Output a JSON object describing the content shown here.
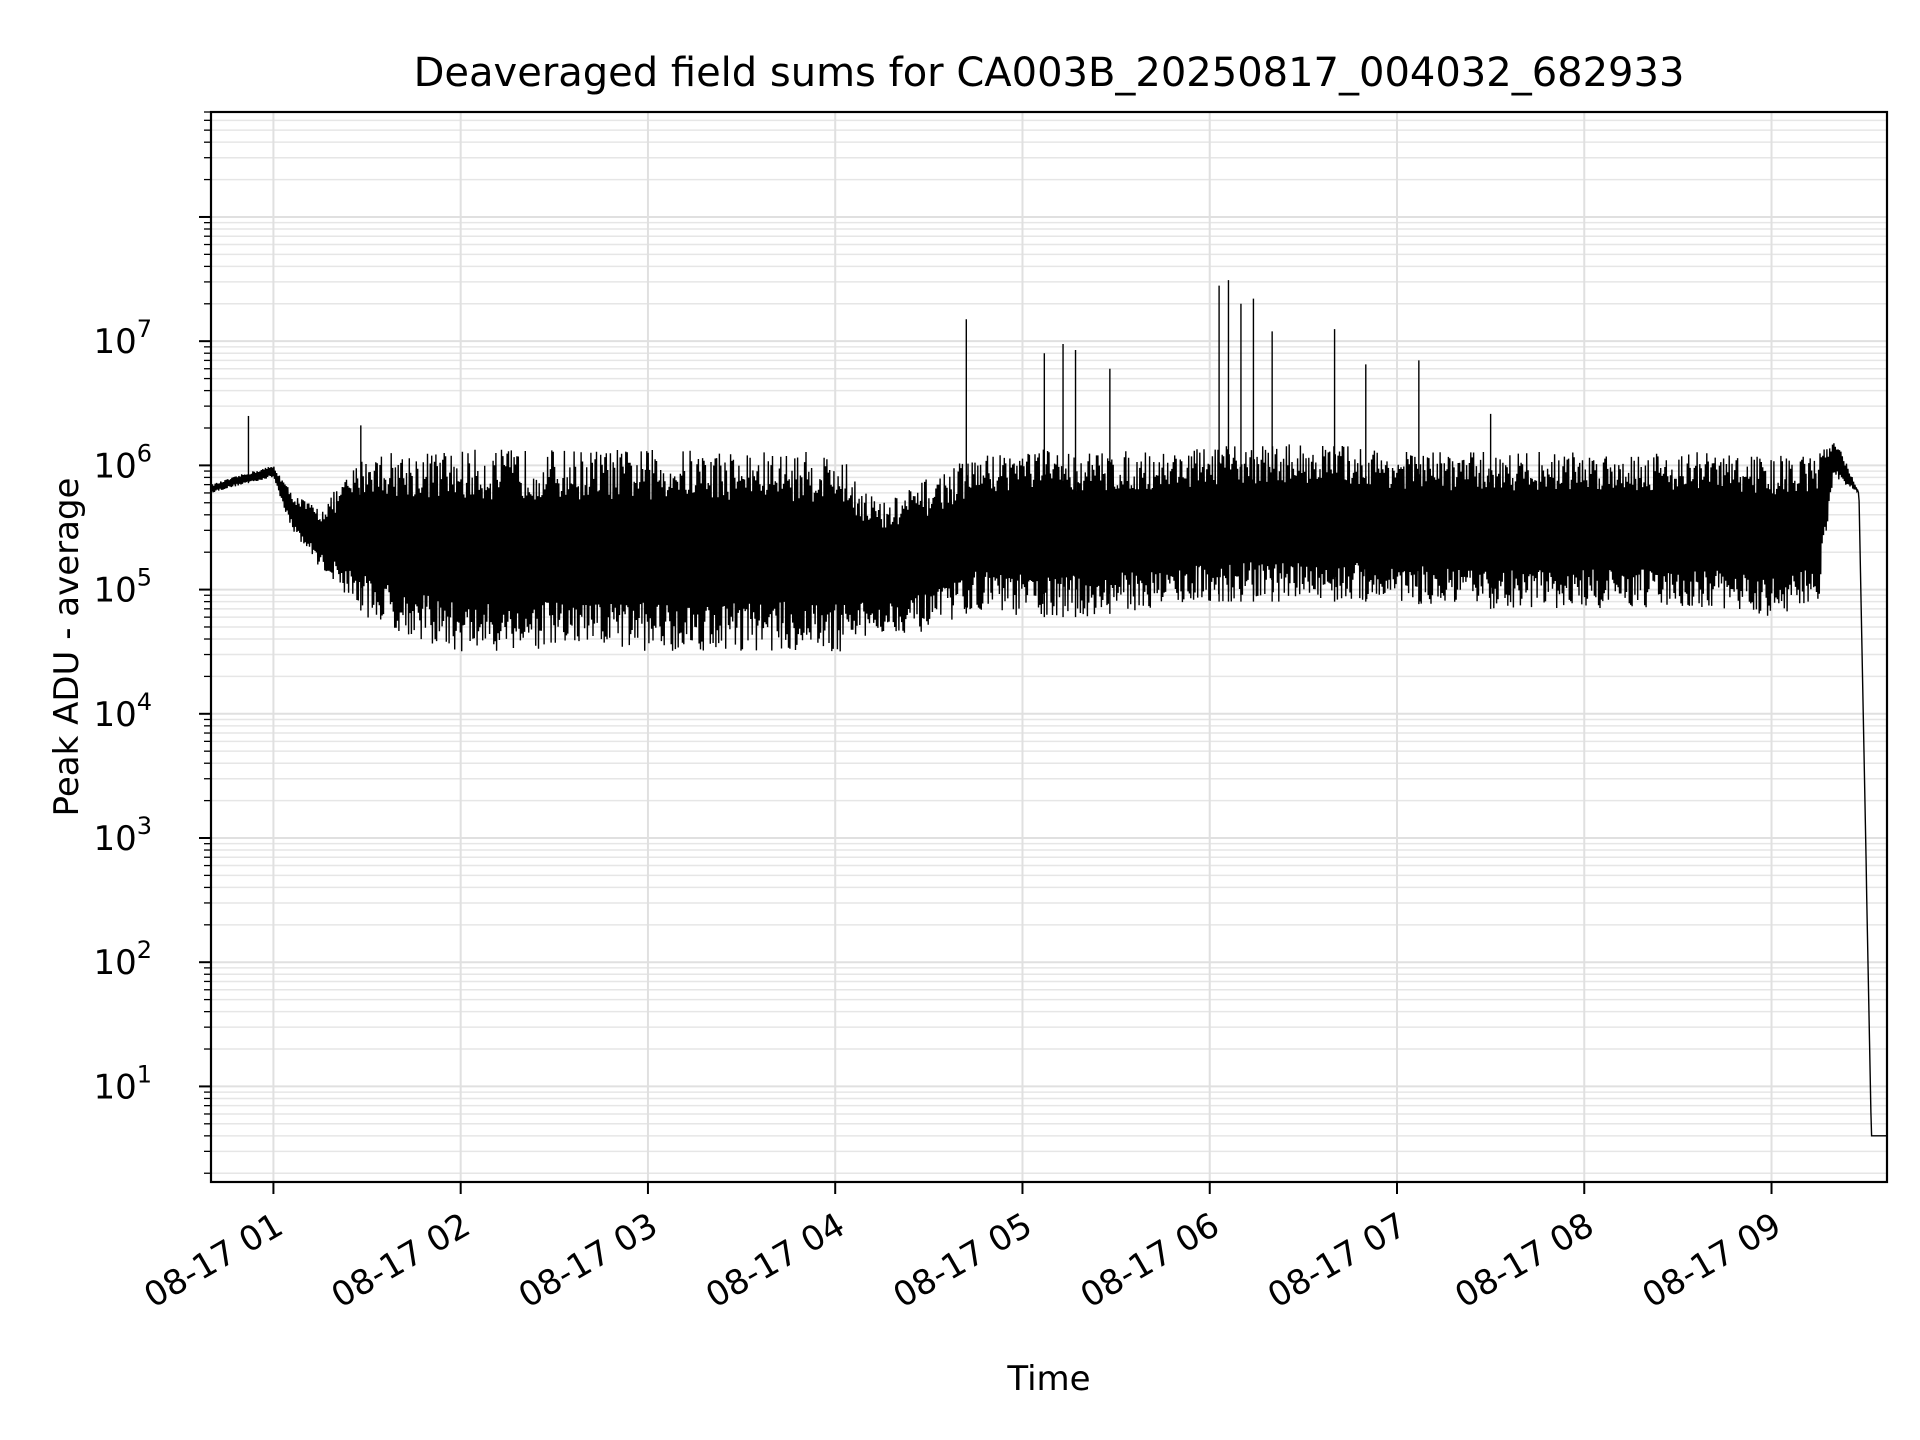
{
  "chart_data": {
    "type": "line",
    "title": "Deaveraged field sums for CA003B_20250817_004032_682933",
    "xlabel": "Time",
    "ylabel": "Peak ADU - average",
    "yscale": "log",
    "xlim": [
      "08-17 00:40",
      "08-17 09:37"
    ],
    "ylim": [
      1.7,
      700000000
    ],
    "grid": true,
    "x_tick_labels": [
      "08-17 01",
      "08-17 02",
      "08-17 03",
      "08-17 04",
      "08-17 05",
      "08-17 06",
      "08-17 07",
      "08-17 08",
      "08-17 09"
    ],
    "y_tick_labels": [
      {
        "base": "10",
        "exp": "1"
      },
      {
        "base": "10",
        "exp": "2"
      },
      {
        "base": "10",
        "exp": "3"
      },
      {
        "base": "10",
        "exp": "4"
      },
      {
        "base": "10",
        "exp": "5"
      },
      {
        "base": "10",
        "exp": "6"
      },
      {
        "base": "10",
        "exp": "7"
      }
    ],
    "series": [
      {
        "color": "#000000",
        "x": [
          "08-17 00:40",
          "08-17 00:50",
          "08-17 01:00",
          "08-17 01:06",
          "08-17 01:15",
          "08-17 01:30",
          "08-17 01:45",
          "08-17 02:00",
          "08-17 02:20",
          "08-17 02:40",
          "08-17 03:00",
          "08-17 03:20",
          "08-17 03:40",
          "08-17 04:00",
          "08-17 04:15",
          "08-17 04:30",
          "08-17 04:45",
          "08-17 05:00",
          "08-17 05:20",
          "08-17 05:40",
          "08-17 06:00",
          "08-17 06:20",
          "08-17 06:40",
          "08-17 07:00",
          "08-17 07:20",
          "08-17 07:40",
          "08-17 08:00",
          "08-17 08:20",
          "08-17 08:40",
          "08-17 09:00",
          "08-17 09:15",
          "08-17 09:20",
          "08-17 09:28",
          "08-17 09:32",
          "08-17 09:37"
        ],
        "upper": [
          700000,
          850000,
          1000000,
          600000,
          450000,
          1300000,
          1300000,
          1350000,
          1350000,
          1350000,
          1350000,
          1350000,
          1300000,
          1300000,
          500000,
          800000,
          1200000,
          1400000,
          1300000,
          1300000,
          1400000,
          1500000,
          1500000,
          1300000,
          1300000,
          1300000,
          1300000,
          1300000,
          1300000,
          1200000,
          1200000,
          1800000,
          600000,
          4,
          4
        ],
        "lower": [
          600000,
          700000,
          800000,
          300000,
          150000,
          60000,
          40000,
          30000,
          32000,
          32000,
          32000,
          32000,
          32000,
          30000,
          45000,
          45000,
          70000,
          60000,
          60000,
          70000,
          80000,
          80000,
          80000,
          80000,
          70000,
          70000,
          70000,
          70000,
          70000,
          60000,
          80000,
          800000,
          600000,
          4,
          4
        ],
        "spikes": [
          {
            "x": "08-17 00:52",
            "y": 2500000
          },
          {
            "x": "08-17 01:28",
            "y": 2100000
          },
          {
            "x": "08-17 04:42",
            "y": 15000000
          },
          {
            "x": "08-17 05:07",
            "y": 8000000
          },
          {
            "x": "08-17 05:13",
            "y": 9500000
          },
          {
            "x": "08-17 05:17",
            "y": 8500000
          },
          {
            "x": "08-17 05:28",
            "y": 6000000
          },
          {
            "x": "08-17 06:03",
            "y": 28000000
          },
          {
            "x": "08-17 06:06",
            "y": 31000000
          },
          {
            "x": "08-17 06:10",
            "y": 20000000
          },
          {
            "x": "08-17 06:14",
            "y": 22000000
          },
          {
            "x": "08-17 06:20",
            "y": 12000000
          },
          {
            "x": "08-17 06:40",
            "y": 12500000
          },
          {
            "x": "08-17 06:50",
            "y": 6500000
          },
          {
            "x": "08-17 07:07",
            "y": 7000000
          },
          {
            "x": "08-17 07:30",
            "y": 2600000
          }
        ]
      }
    ]
  }
}
